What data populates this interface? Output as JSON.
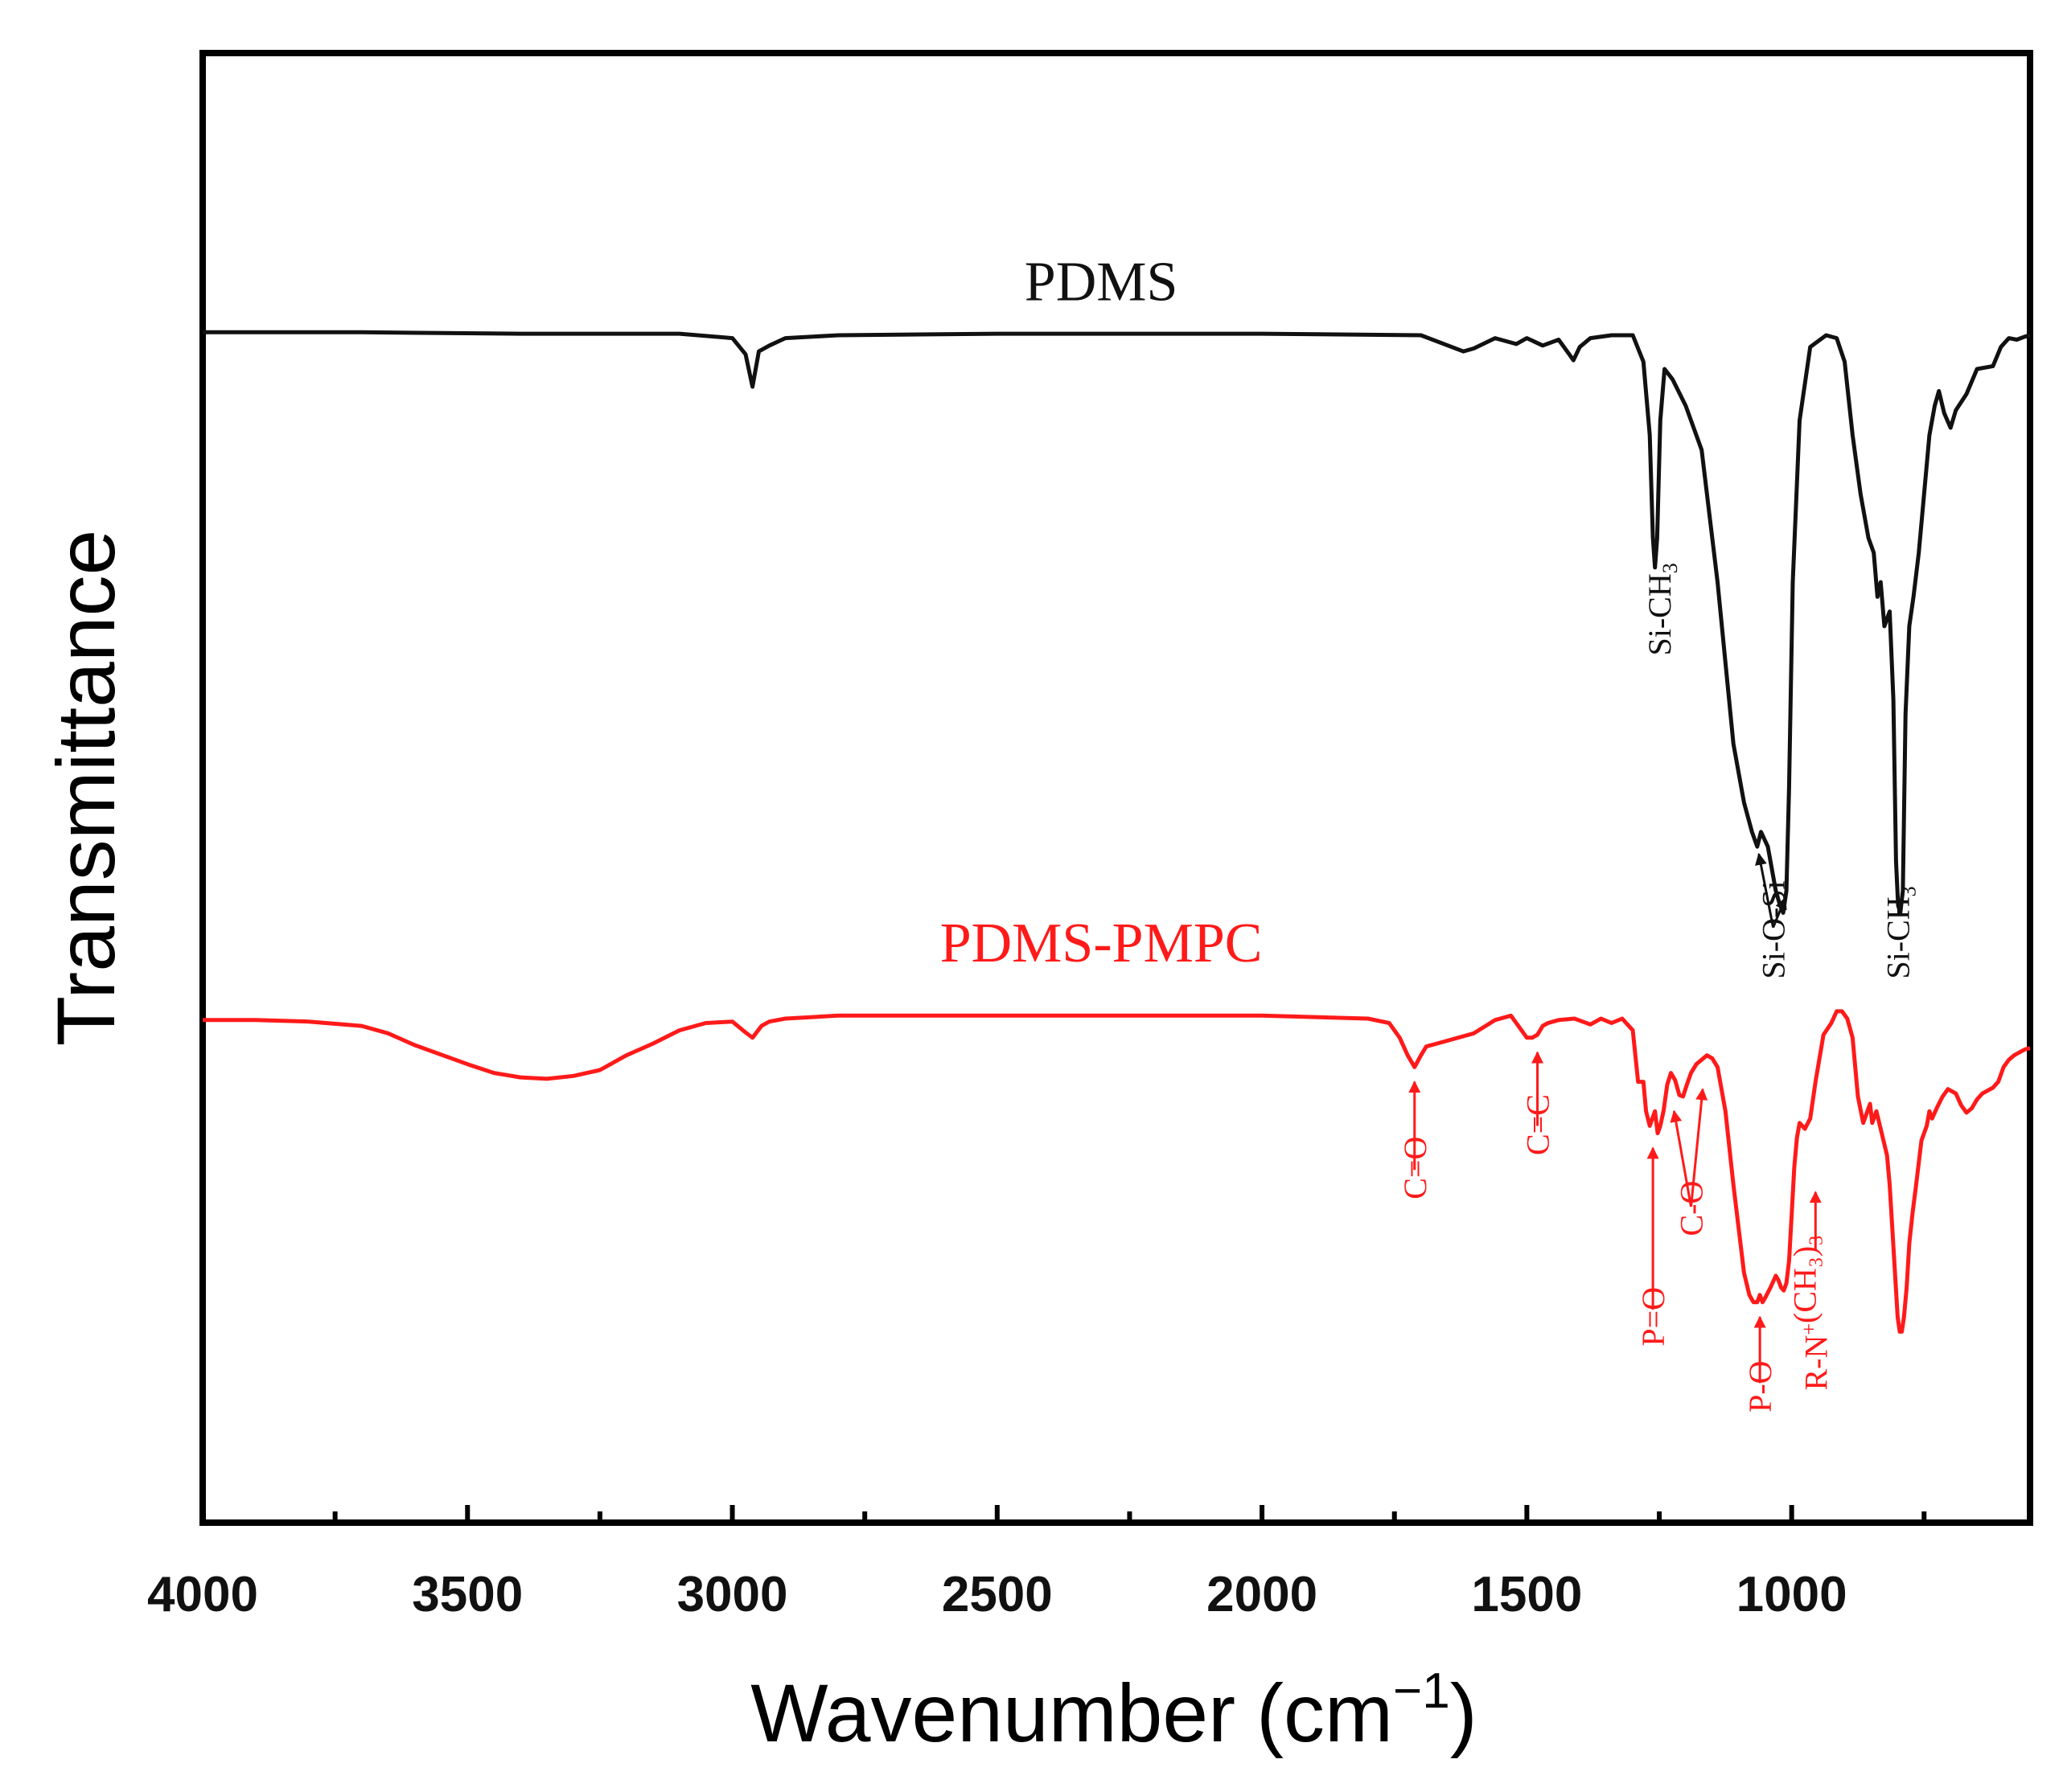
{
  "chart_data": {
    "type": "line",
    "title": "",
    "xlabel": "Wavenumber",
    "xlabel_unit": "(cm",
    "xlabel_exp": "−1",
    "xlabel_close": ")",
    "ylabel": "Transmittance",
    "xlim": [
      4000,
      550
    ],
    "ylim": [
      0,
      1
    ],
    "xticks": [
      4000,
      3500,
      3000,
      2500,
      2000,
      1500,
      1000
    ],
    "xtick_labels": [
      "4000",
      "3500",
      "3000",
      "2500",
      "2000",
      "1500",
      "1000"
    ],
    "minor_xticks": [
      3750,
      3250,
      2750,
      2250,
      1750,
      1250,
      750
    ],
    "series": [
      {
        "name": "PDMS",
        "color": "#111111",
        "x": [
          4000,
          3700,
          3400,
          3100,
          3000,
          2975,
          2962,
          2950,
          2930,
          2900,
          2800,
          2500,
          2000,
          1700,
          1620,
          1600,
          1560,
          1520,
          1500,
          1470,
          1440,
          1420,
          1412,
          1400,
          1380,
          1340,
          1300,
          1280,
          1268,
          1262,
          1258,
          1254,
          1248,
          1240,
          1225,
          1200,
          1170,
          1140,
          1110,
          1090,
          1075,
          1065,
          1058,
          1045,
          1030,
          1022,
          1016,
          1010,
          1005,
          998,
          985,
          965,
          935,
          915,
          900,
          885,
          870,
          855,
          845,
          838,
          832,
          825,
          815,
          808,
          803,
          799,
          795,
          790,
          785,
          778,
          770,
          760,
          750,
          740,
          730,
          722,
          712,
          700,
          690,
          670,
          650,
          620,
          605,
          590,
          575,
          560,
          550
        ],
        "y": [
          0.81,
          0.81,
          0.809,
          0.809,
          0.806,
          0.795,
          0.773,
          0.797,
          0.801,
          0.806,
          0.808,
          0.809,
          0.809,
          0.808,
          0.797,
          0.799,
          0.806,
          0.802,
          0.806,
          0.801,
          0.805,
          0.795,
          0.791,
          0.8,
          0.806,
          0.808,
          0.808,
          0.79,
          0.74,
          0.67,
          0.65,
          0.67,
          0.75,
          0.785,
          0.778,
          0.76,
          0.73,
          0.64,
          0.53,
          0.49,
          0.47,
          0.46,
          0.47,
          0.46,
          0.43,
          0.42,
          0.415,
          0.43,
          0.5,
          0.64,
          0.75,
          0.8,
          0.808,
          0.806,
          0.79,
          0.74,
          0.7,
          0.67,
          0.66,
          0.63,
          0.64,
          0.61,
          0.62,
          0.56,
          0.45,
          0.42,
          0.415,
          0.43,
          0.55,
          0.61,
          0.63,
          0.66,
          0.7,
          0.74,
          0.76,
          0.77,
          0.755,
          0.745,
          0.757,
          0.768,
          0.785,
          0.787,
          0.8,
          0.806,
          0.805,
          0.807,
          0.808
        ]
      },
      {
        "name": "PDMS-PMPC",
        "color": "#ff1a1a",
        "x": [
          4000,
          3900,
          3800,
          3700,
          3650,
          3600,
          3500,
          3450,
          3400,
          3350,
          3300,
          3250,
          3200,
          3150,
          3100,
          3050,
          3000,
          2980,
          2962,
          2945,
          2930,
          2900,
          2800,
          2600,
          2400,
          2200,
          2000,
          1800,
          1760,
          1740,
          1725,
          1712,
          1700,
          1690,
          1670,
          1640,
          1600,
          1560,
          1530,
          1500,
          1490,
          1480,
          1470,
          1460,
          1440,
          1410,
          1380,
          1360,
          1340,
          1320,
          1300,
          1290,
          1280,
          1275,
          1268,
          1262,
          1258,
          1253,
          1248,
          1242,
          1235,
          1228,
          1220,
          1212,
          1205,
          1198,
          1190,
          1180,
          1170,
          1160,
          1150,
          1140,
          1125,
          1110,
          1100,
          1090,
          1080,
          1072,
          1065,
          1060,
          1055,
          1050,
          1040,
          1030,
          1025,
          1020,
          1015,
          1010,
          1005,
          1000,
          995,
          990,
          985,
          975,
          965,
          955,
          940,
          925,
          915,
          905,
          895,
          885,
          875,
          865,
          857,
          852,
          848,
          840,
          830,
          820,
          815,
          810,
          805,
          800,
          796,
          792,
          788,
          783,
          778,
          772,
          765,
          755,
          745,
          740,
          735,
          725,
          715,
          705,
          690,
          680,
          670,
          660,
          650,
          640,
          630,
          620,
          610,
          600,
          590,
          580,
          570,
          560,
          550
        ],
        "y": [
          0.342,
          0.342,
          0.341,
          0.338,
          0.333,
          0.325,
          0.312,
          0.306,
          0.303,
          0.302,
          0.304,
          0.308,
          0.318,
          0.326,
          0.335,
          0.34,
          0.341,
          0.335,
          0.33,
          0.338,
          0.341,
          0.343,
          0.345,
          0.345,
          0.345,
          0.345,
          0.345,
          0.343,
          0.34,
          0.33,
          0.318,
          0.31,
          0.318,
          0.324,
          0.326,
          0.329,
          0.333,
          0.342,
          0.345,
          0.33,
          0.33,
          0.332,
          0.338,
          0.34,
          0.342,
          0.343,
          0.339,
          0.343,
          0.34,
          0.343,
          0.335,
          0.3,
          0.3,
          0.28,
          0.27,
          0.276,
          0.28,
          0.265,
          0.27,
          0.28,
          0.298,
          0.306,
          0.301,
          0.291,
          0.29,
          0.298,
          0.306,
          0.312,
          0.315,
          0.318,
          0.316,
          0.31,
          0.28,
          0.23,
          0.2,
          0.17,
          0.155,
          0.15,
          0.15,
          0.155,
          0.15,
          0.153,
          0.16,
          0.168,
          0.165,
          0.16,
          0.158,
          0.163,
          0.178,
          0.21,
          0.242,
          0.262,
          0.272,
          0.268,
          0.275,
          0.3,
          0.332,
          0.34,
          0.348,
          0.348,
          0.343,
          0.33,
          0.29,
          0.272,
          0.28,
          0.285,
          0.272,
          0.28,
          0.265,
          0.25,
          0.23,
          0.2,
          0.17,
          0.14,
          0.13,
          0.13,
          0.14,
          0.16,
          0.19,
          0.21,
          0.23,
          0.26,
          0.27,
          0.28,
          0.275,
          0.283,
          0.29,
          0.295,
          0.292,
          0.284,
          0.279,
          0.282,
          0.288,
          0.292,
          0.294,
          0.296,
          0.3,
          0.31,
          0.315,
          0.318,
          0.32,
          0.322,
          0.323
        ]
      }
    ],
    "series_labels": [
      {
        "text": "PDMS",
        "x": 2000,
        "y": 0.845,
        "color": "#111111"
      },
      {
        "text": "PDMS-PMPC",
        "x": 2000,
        "y": 0.395,
        "color": "#ff1a1a"
      }
    ],
    "annotations": [
      {
        "label": "Si-CH",
        "sub": "3",
        "sup": "",
        "suffix": "",
        "x": 1250,
        "y": 0.59,
        "color": "#111111",
        "arrow": false
      },
      {
        "label": "Si-O-Si",
        "sub": "",
        "sup": "",
        "suffix": "",
        "x": 1035,
        "y": 0.37,
        "color": "#111111",
        "arrow": false
      },
      {
        "label": "Si-CH",
        "sub": "3",
        "sup": "",
        "suffix": "",
        "x": 800,
        "y": 0.37,
        "color": "#111111",
        "arrow": false
      },
      {
        "label": "C=O",
        "sub": "",
        "sup": "",
        "suffix": "",
        "x": 1712,
        "y": 0.22,
        "color": "#ff1a1a",
        "arrow": true,
        "arrow_top": 0.3,
        "arrow_bottom": 0.24
      },
      {
        "label": "C=C",
        "sub": "",
        "sup": "",
        "suffix": "",
        "x": 1480,
        "y": 0.25,
        "color": "#ff1a1a",
        "arrow": true,
        "arrow_top": 0.32,
        "arrow_bottom": 0.27
      },
      {
        "label": "P=O",
        "sub": "",
        "sup": "",
        "suffix": "",
        "x": 1262,
        "y": 0.12,
        "color": "#ff1a1a",
        "arrow": true,
        "arrow_top": 0.255,
        "arrow_bottom": 0.145
      },
      {
        "label": "C-O",
        "sub": "",
        "sup": "",
        "suffix": "",
        "x": 1190,
        "y": 0.195,
        "color": "#ff1a1a",
        "arrow": false
      },
      {
        "label": "P-O",
        "sub": "",
        "sup": "",
        "suffix": "",
        "x": 1060,
        "y": 0.075,
        "color": "#ff1a1a",
        "arrow": true,
        "arrow_top": 0.14,
        "arrow_bottom": 0.095
      },
      {
        "label": "R-N",
        "sub": "",
        "sup": "+",
        "suffix": "(CH₃)₃",
        "x": 955,
        "y": 0.09,
        "color": "#ff1a1a",
        "arrow": true,
        "arrow_top": 0.225,
        "arrow_bottom": 0.185
      }
    ],
    "pointers": [
      {
        "color": "#111111",
        "from": [
          1035,
          0.405
        ],
        "to": [
          1062,
          0.455
        ]
      },
      {
        "color": "#111111",
        "from": [
          1035,
          0.405
        ],
        "to": [
          1012,
          0.425
        ]
      },
      {
        "color": "#ff1a1a",
        "from": [
          1190,
          0.215
        ],
        "to": [
          1222,
          0.28
        ]
      },
      {
        "color": "#ff1a1a",
        "from": [
          1190,
          0.215
        ],
        "to": [
          1168,
          0.295
        ]
      }
    ]
  }
}
